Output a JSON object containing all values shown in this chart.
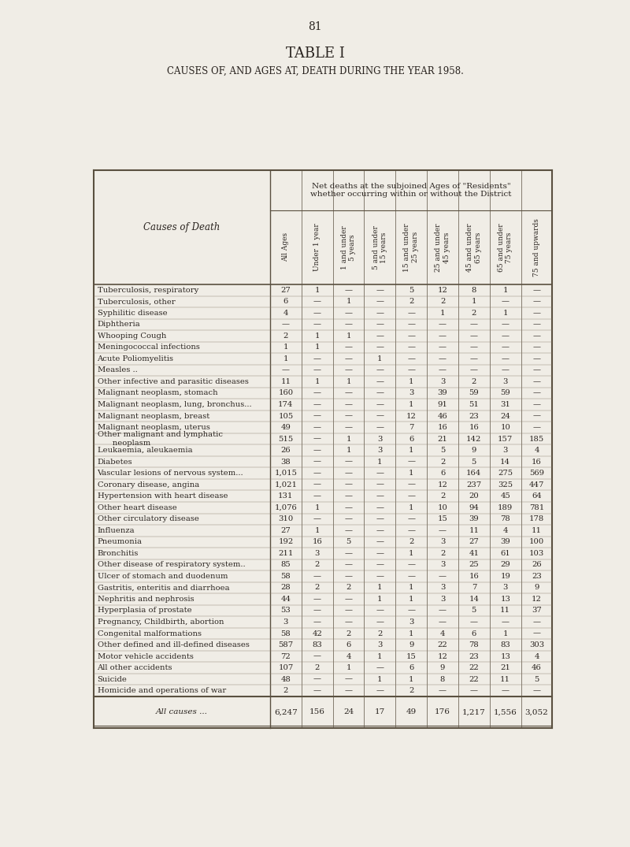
{
  "page_number": "81",
  "title": "TABLE I",
  "subtitle": "CAUSES OF, AND AGES AT, DEATH DURING THE YEAR 1958.",
  "header_note": "Net deaths at the subjoined Ages of \"Residents\"\nwhether occurring within or without the District",
  "col_headers": [
    "All Ages",
    "Under 1 year",
    "1 and under\n5 years",
    "5 and under\n15 years",
    "15 and under\n25 years",
    "25 and under\n45 years",
    "45 and under\n65 years",
    "65 and under\n75 years",
    "75 and upwards"
  ],
  "row_label_header": "Causes of Death",
  "rows": [
    [
      "Tuberculosis, respiratory",
      "27",
      "1",
      "—",
      "—",
      "5",
      "12",
      "8",
      "1"
    ],
    [
      "Tuberculosis, other",
      "6",
      "—",
      "1",
      "—",
      "2",
      "2",
      "1",
      "—"
    ],
    [
      "Syphilitic disease",
      "4",
      "—",
      "—",
      "—",
      "—",
      "1",
      "2",
      "1"
    ],
    [
      "Diphtheria",
      "—",
      "—",
      "—",
      "—",
      "—",
      "—",
      "—",
      "—"
    ],
    [
      "Whooping Cough",
      "2",
      "1",
      "1",
      "—",
      "—",
      "—",
      "—",
      "—"
    ],
    [
      "Meningococcal infections",
      "1",
      "1",
      "—",
      "—",
      "—",
      "—",
      "—",
      "—"
    ],
    [
      "Acute Poliomyelitis",
      "1",
      "—",
      "—",
      "1",
      "—",
      "—",
      "—",
      "—"
    ],
    [
      "Measles ..",
      "—",
      "—",
      "—",
      "—",
      "—",
      "—",
      "—",
      "—"
    ],
    [
      "Other infective and parasitic diseases",
      "11",
      "1",
      "1",
      "—",
      "1",
      "3",
      "2",
      "3"
    ],
    [
      "Malignant neoplasm, stomach",
      "160",
      "—",
      "—",
      "—",
      "3",
      "39",
      "59",
      "59"
    ],
    [
      "Malignant neoplasm, lung, bronchus...",
      "174",
      "—",
      "—",
      "—",
      "1",
      "91",
      "51",
      "31"
    ],
    [
      "Malignant neoplasm, breast",
      "105",
      "—",
      "—",
      "—",
      "12",
      "46",
      "23",
      "24"
    ],
    [
      "Malignant neoplasm, uterus",
      "49",
      "—",
      "—",
      "—",
      "7",
      "16",
      "16",
      "10"
    ],
    [
      "Other malignant and lymphatic\n      neoplasm",
      "515",
      "—",
      "1",
      "3",
      "6",
      "21",
      "142",
      "157",
      "185"
    ],
    [
      "Leukaemia, aleukaemia",
      "26",
      "—",
      "1",
      "3",
      "1",
      "5",
      "9",
      "3",
      "4"
    ],
    [
      "Diabetes",
      "38",
      "—",
      "—",
      "1",
      "—",
      "2",
      "5",
      "14",
      "16"
    ],
    [
      "Vascular lesions of nervous system...",
      "1,015",
      "—",
      "—",
      "—",
      "1",
      "6",
      "164",
      "275",
      "569"
    ],
    [
      "Coronary disease, angina",
      "1,021",
      "—",
      "—",
      "—",
      "—",
      "12",
      "237",
      "325",
      "447"
    ],
    [
      "Hypertension with heart disease",
      "131",
      "—",
      "—",
      "—",
      "—",
      "2",
      "20",
      "45",
      "64"
    ],
    [
      "Other heart disease",
      "1,076",
      "1",
      "—",
      "—",
      "1",
      "10",
      "94",
      "189",
      "781"
    ],
    [
      "Other circulatory disease",
      "310",
      "—",
      "—",
      "—",
      "—",
      "15",
      "39",
      "78",
      "178"
    ],
    [
      "Influenza",
      "27",
      "1",
      "—",
      "—",
      "—",
      "—",
      "11",
      "4",
      "11"
    ],
    [
      "Pneumonia",
      "192",
      "16",
      "5",
      "—",
      "2",
      "3",
      "27",
      "39",
      "100"
    ],
    [
      "Bronchitis",
      "211",
      "3",
      "—",
      "—",
      "1",
      "2",
      "41",
      "61",
      "103"
    ],
    [
      "Other disease of respiratory system..",
      "85",
      "2",
      "—",
      "—",
      "—",
      "3",
      "25",
      "29",
      "26"
    ],
    [
      "Ulcer of stomach and duodenum",
      "58",
      "—",
      "—",
      "—",
      "—",
      "—",
      "16",
      "19",
      "23"
    ],
    [
      "Gastritis, enteritis and diarrhoea",
      "28",
      "2",
      "2",
      "1",
      "1",
      "3",
      "7",
      "3",
      "9"
    ],
    [
      "Nephritis and nephrosis",
      "44",
      "—",
      "—",
      "1",
      "1",
      "3",
      "14",
      "13",
      "12"
    ],
    [
      "Hyperplasia of prostate",
      "53",
      "—",
      "—",
      "—",
      "—",
      "—",
      "5",
      "11",
      "37"
    ],
    [
      "Pregnancy, Childbirth, abortion",
      "3",
      "—",
      "—",
      "—",
      "3",
      "—",
      "—",
      "—"
    ],
    [
      "Congenital malformations",
      "58",
      "42",
      "2",
      "2",
      "1",
      "4",
      "6",
      "1",
      "—"
    ],
    [
      "Other defined and ill-defined diseases",
      "587",
      "83",
      "6",
      "3",
      "9",
      "22",
      "78",
      "83",
      "303"
    ],
    [
      "Motor vehicle accidents",
      "72",
      "—",
      "4",
      "1",
      "15",
      "12",
      "23",
      "13",
      "4"
    ],
    [
      "All other accidents",
      "107",
      "2",
      "1",
      "—",
      "6",
      "9",
      "22",
      "21",
      "46"
    ],
    [
      "Suicide",
      "48",
      "—",
      "—",
      "1",
      "1",
      "8",
      "22",
      "11",
      "5"
    ],
    [
      "Homicide and operations of war",
      "2",
      "—",
      "—",
      "—",
      "2",
      "—",
      "—",
      "—",
      "—"
    ]
  ],
  "totals": [
    "All causes ...",
    "6,247",
    "156",
    "24",
    "17",
    "49",
    "176",
    "1,217",
    "1,556",
    "3,052"
  ],
  "bg_color": "#f0ede6",
  "text_color": "#2a2420",
  "line_color": "#5a5040"
}
